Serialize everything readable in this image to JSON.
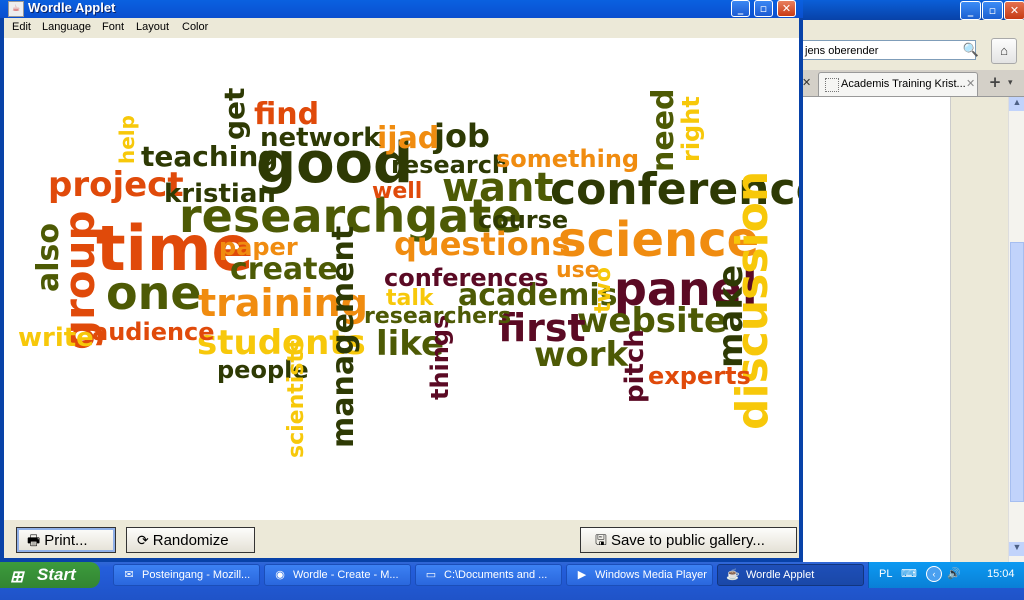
{
  "background_window": {
    "search_value": "jens oberender",
    "tab_label": "Academis Training Krist...",
    "new_tab": "+",
    "tab_menu": "▾"
  },
  "window": {
    "title": "Wordle Applet",
    "menu": [
      "Edit",
      "Language",
      "Font",
      "Layout",
      "Color"
    ],
    "buttons": {
      "print": "Print...",
      "randomize": "Randomize",
      "save": "Save to public gallery..."
    }
  },
  "wordle_palette": [
    "#e04a0a",
    "#f08c10",
    "#f7c80a",
    "#4d5a05",
    "#2e3a04",
    "#5b0a24"
  ],
  "wordle_words": [
    "time",
    "good",
    "researchgate",
    "conference",
    "science",
    "one",
    "want",
    "panel",
    "training",
    "discussion",
    "group",
    "project",
    "teaching",
    "students",
    "website",
    "first",
    "create",
    "academis",
    "questions",
    "management",
    "job",
    "ijad",
    "find",
    "network",
    "get",
    "kristian",
    "course",
    "research",
    "something",
    "need",
    "right",
    "help",
    "also",
    "paper",
    "audience",
    "write",
    "people",
    "scientists",
    "like",
    "things",
    "researchers",
    "conferences",
    "talk",
    "use",
    "two",
    "work",
    "pitch",
    "experts",
    "make",
    "well"
  ],
  "taskbar": {
    "start_label": "Start",
    "tasks": [
      "Posteingang - Mozill...",
      "Wordle - Create - M...",
      "C:\\Documents and ...",
      "Windows Media Player",
      "Wordle Applet"
    ],
    "tray_language": "PL",
    "clock": "15:04"
  }
}
